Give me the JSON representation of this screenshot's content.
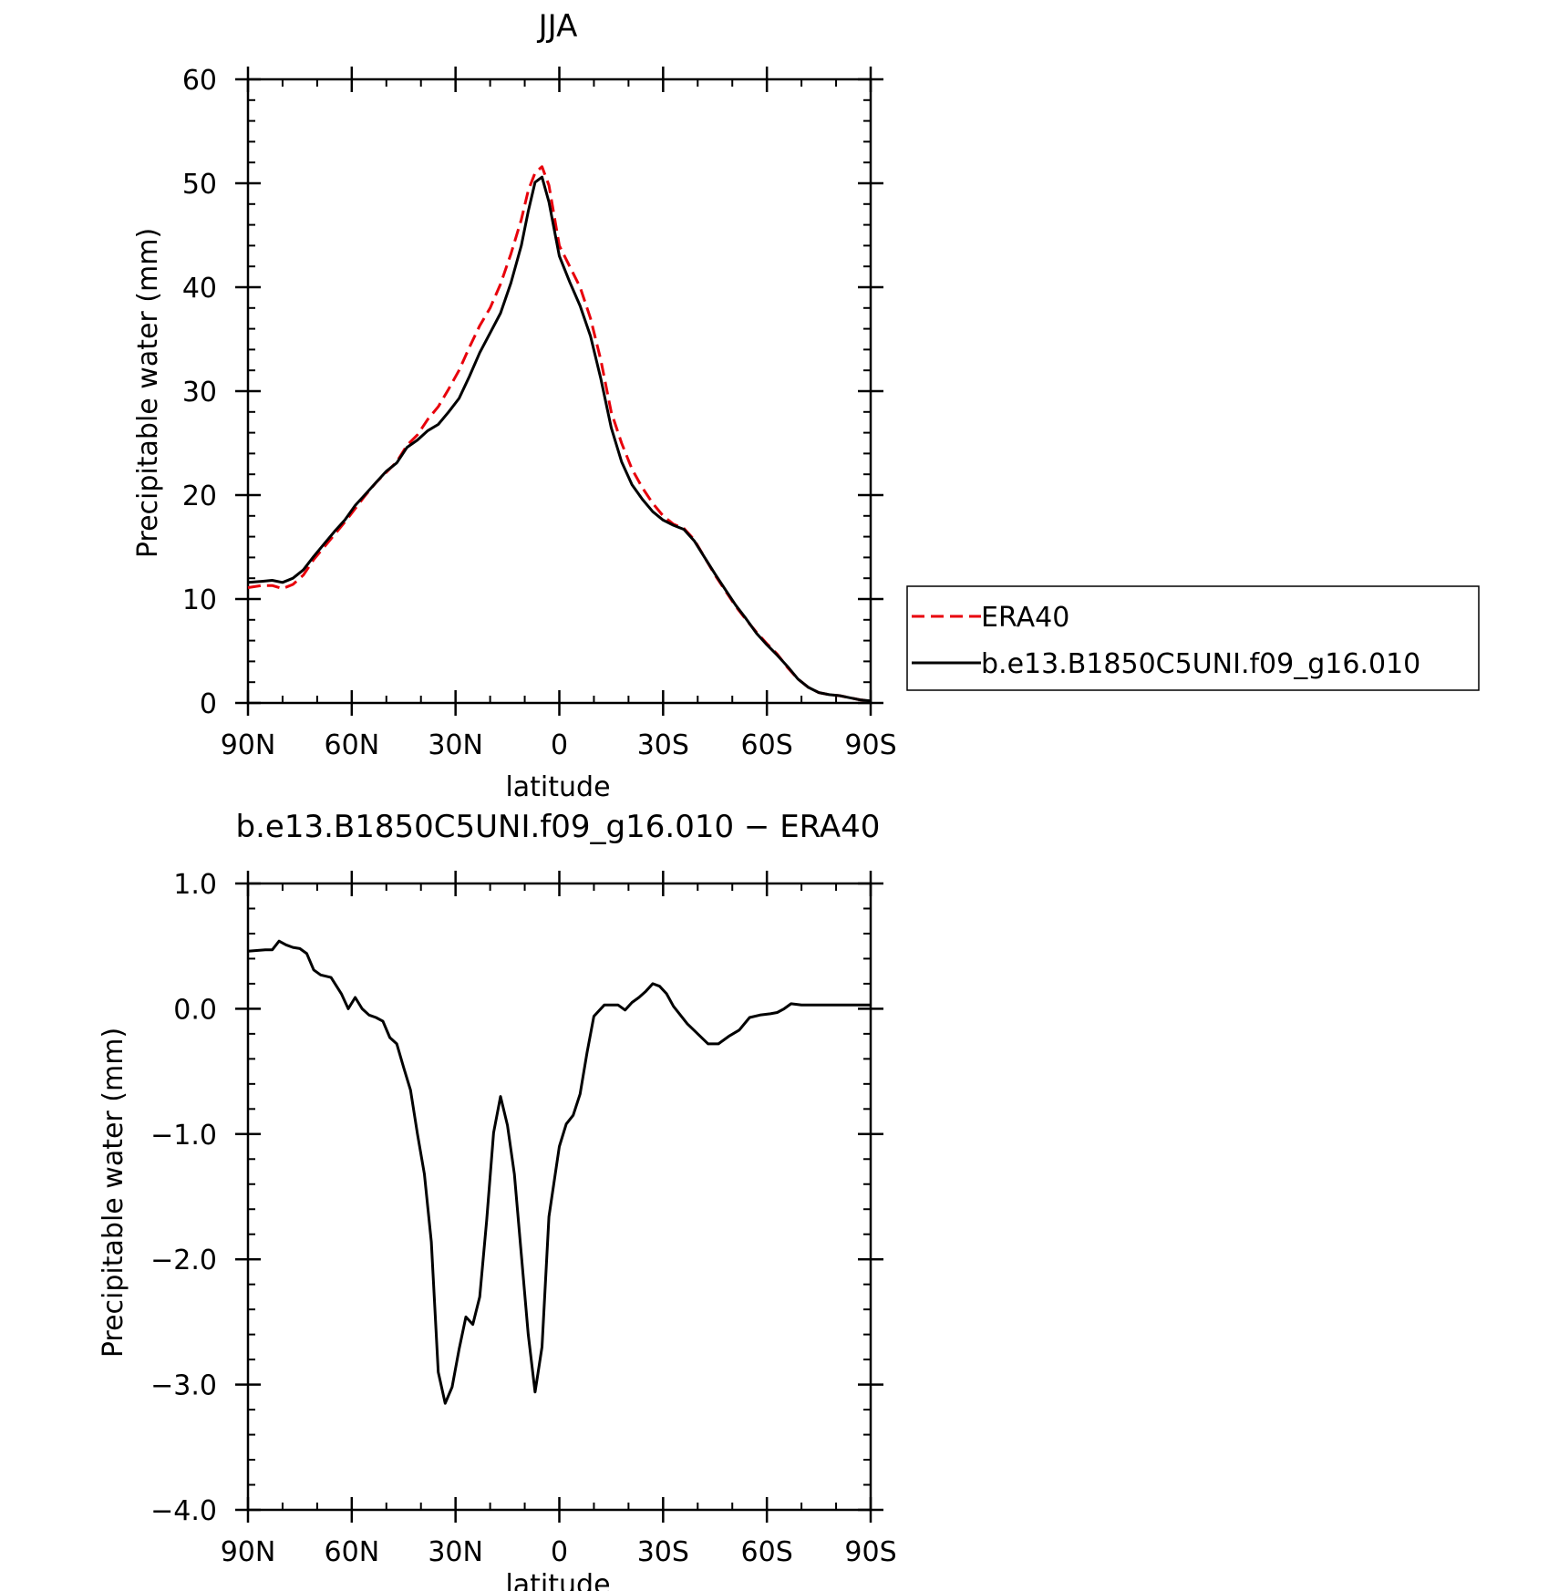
{
  "chart_data": [
    {
      "type": "line",
      "title": "JJA",
      "xlabel": "latitude",
      "ylabel": "Precipitable water (mm)",
      "xlim": [
        90,
        -90
      ],
      "ylim": [
        0,
        60
      ],
      "xticks": [
        90,
        60,
        30,
        0,
        -30,
        -60,
        -90
      ],
      "xtick_labels": [
        "90N",
        "60N",
        "30N",
        "0",
        "30S",
        "60S",
        "90S"
      ],
      "yticks": [
        0,
        10,
        20,
        30,
        40,
        50,
        60
      ],
      "ytick_labels": [
        "0",
        "10",
        "20",
        "30",
        "40",
        "50",
        "60"
      ],
      "legend_position": "right",
      "series": [
        {
          "name": "ERA40",
          "color": "#e8000b",
          "dash": true,
          "x": [
            90,
            86,
            83,
            80,
            77,
            74,
            71,
            68,
            65,
            62,
            59,
            56,
            53,
            50,
            47,
            44,
            41,
            38,
            35,
            32,
            29,
            26,
            23,
            20,
            17,
            14,
            11,
            9,
            7,
            5,
            3,
            0,
            -3,
            -6,
            -9,
            -12,
            -15,
            -18,
            -21,
            -24,
            -27,
            -30,
            -33,
            -36,
            -39,
            -42,
            -45,
            -48,
            -51,
            -54,
            -57,
            -60,
            -63,
            -66,
            -69,
            -72,
            -75,
            -78,
            -81,
            -84,
            -87,
            -90
          ],
          "y": [
            11.1,
            11.3,
            11.3,
            11.0,
            11.4,
            12.3,
            13.8,
            15.0,
            16.2,
            17.4,
            18.7,
            20.0,
            21.2,
            22.2,
            23.2,
            24.8,
            25.8,
            27.3,
            28.5,
            30.2,
            32.0,
            34.2,
            36.3,
            38.0,
            40.3,
            43.2,
            46.5,
            49.3,
            51.0,
            51.6,
            49.8,
            44.0,
            42.0,
            40.0,
            37.0,
            33.0,
            28.0,
            25.0,
            22.5,
            20.7,
            19.2,
            18.0,
            17.2,
            16.8,
            15.7,
            14.0,
            12.3,
            10.8,
            9.3,
            8.0,
            6.8,
            5.7,
            4.7,
            3.4,
            2.3,
            1.5,
            1.0,
            0.8,
            0.7,
            0.5,
            0.3,
            0.2
          ]
        },
        {
          "name": "b.e13.B1850C5UNI.f09_g16.010",
          "color": "#000000",
          "dash": false,
          "x": [
            90,
            86,
            83,
            80,
            77,
            74,
            71,
            68,
            65,
            62,
            59,
            56,
            53,
            50,
            47,
            44,
            41,
            38,
            35,
            32,
            29,
            26,
            23,
            20,
            17,
            14,
            11,
            9,
            7,
            5,
            3,
            0,
            -3,
            -6,
            -9,
            -12,
            -15,
            -18,
            -21,
            -24,
            -27,
            -30,
            -33,
            -36,
            -39,
            -42,
            -45,
            -48,
            -51,
            -54,
            -57,
            -60,
            -63,
            -66,
            -69,
            -72,
            -75,
            -78,
            -81,
            -84,
            -87,
            -90
          ],
          "y": [
            11.6,
            11.7,
            11.8,
            11.6,
            12.0,
            12.8,
            14.1,
            15.3,
            16.5,
            17.6,
            19.0,
            20.1,
            21.2,
            22.3,
            23.1,
            24.6,
            25.3,
            26.2,
            26.8,
            28.0,
            29.3,
            31.4,
            33.7,
            35.6,
            37.5,
            40.4,
            44.0,
            47.3,
            50.1,
            50.6,
            48.2,
            43.0,
            40.5,
            38.2,
            35.3,
            31.2,
            26.5,
            23.2,
            21.0,
            19.6,
            18.4,
            17.6,
            17.1,
            16.7,
            15.6,
            14.0,
            12.4,
            10.9,
            9.4,
            8.1,
            6.7,
            5.6,
            4.6,
            3.5,
            2.3,
            1.5,
            1.0,
            0.8,
            0.7,
            0.5,
            0.3,
            0.2
          ]
        }
      ]
    },
    {
      "type": "line",
      "title": "b.e13.B1850C5UNI.f09_g16.010 − ERA40",
      "xlabel": "latitude",
      "ylabel": "Precipitable water (mm)",
      "xlim": [
        90,
        -90
      ],
      "ylim": [
        -4.0,
        1.0
      ],
      "xticks": [
        90,
        60,
        30,
        0,
        -30,
        -60,
        -90
      ],
      "xtick_labels": [
        "90N",
        "60N",
        "30N",
        "0",
        "30S",
        "60S",
        "90S"
      ],
      "yticks": [
        1.0,
        0.0,
        -1.0,
        -2.0,
        -3.0,
        -4.0
      ],
      "ytick_labels": [
        "1.0",
        "0.0",
        "−1.0",
        "−2.0",
        "−3.0",
        "−4.0"
      ],
      "series": [
        {
          "color": "#000000",
          "dash": false,
          "x": [
            90,
            85,
            83,
            81,
            79,
            77,
            75,
            73,
            71,
            69,
            66,
            63,
            61,
            59,
            57,
            55,
            53,
            51,
            49,
            47,
            45,
            43,
            41,
            39,
            37,
            35,
            33,
            31,
            29,
            27,
            25,
            23,
            21,
            19,
            17,
            15,
            13,
            11,
            9,
            7,
            5,
            3,
            0,
            -2,
            -4,
            -6,
            -8,
            -10,
            -13,
            -15,
            -17,
            -19,
            -21,
            -23,
            -25,
            -27,
            -29,
            -31,
            -33,
            -35,
            -37,
            -40,
            -43,
            -46,
            -49,
            -52,
            -55,
            -58,
            -61,
            -63,
            -65,
            -67,
            -70,
            -72,
            -75,
            -78,
            -81,
            -84,
            -87,
            -90
          ],
          "y": [
            0.46,
            0.47,
            0.47,
            0.54,
            0.51,
            0.49,
            0.48,
            0.44,
            0.31,
            0.27,
            0.25,
            0.12,
            0.0,
            0.09,
            0.0,
            -0.05,
            -0.07,
            -0.1,
            -0.23,
            -0.28,
            -0.47,
            -0.65,
            -1.0,
            -1.32,
            -1.86,
            -2.9,
            -3.15,
            -3.02,
            -2.72,
            -2.46,
            -2.52,
            -2.3,
            -1.69,
            -0.99,
            -0.7,
            -0.93,
            -1.32,
            -1.96,
            -2.6,
            -3.06,
            -2.7,
            -1.66,
            -1.1,
            -0.92,
            -0.85,
            -0.68,
            -0.35,
            -0.06,
            0.03,
            0.03,
            0.03,
            -0.01,
            0.05,
            0.09,
            0.14,
            0.2,
            0.18,
            0.12,
            0.02,
            -0.05,
            -0.12,
            -0.2,
            -0.28,
            -0.28,
            -0.22,
            -0.17,
            -0.07,
            -0.05,
            -0.04,
            -0.03,
            0.0,
            0.04,
            0.03,
            0.03,
            0.03,
            0.03,
            0.03,
            0.03,
            0.03,
            0.03
          ]
        }
      ]
    }
  ]
}
